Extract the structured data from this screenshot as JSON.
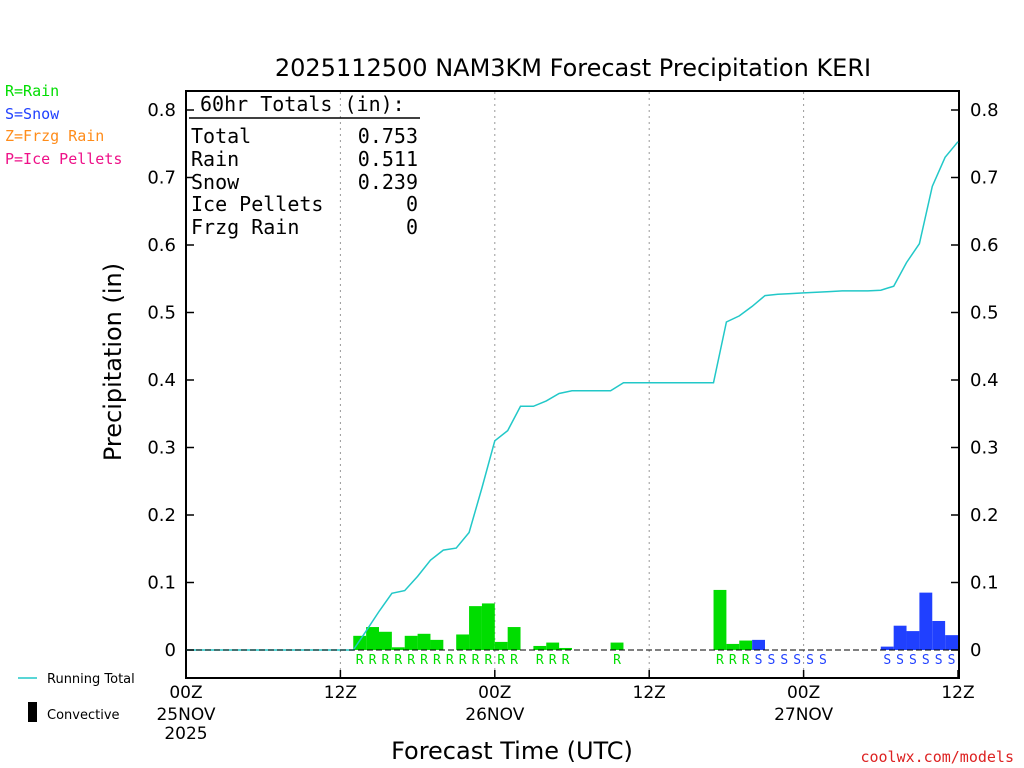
{
  "chart_data": {
    "type": "bar",
    "title": "2025112500 NAM3KM Forecast Precipitation KERI",
    "xlabel": "Forecast Time (UTC)",
    "ylabel": "Precipitation (in)",
    "ylim": [
      0,
      0.8
    ],
    "y_ticks": [
      "0",
      "0.1",
      "0.2",
      "0.3",
      "0.4",
      "0.5",
      "0.6",
      "0.7",
      "0.8"
    ],
    "x_range_hours": [
      0,
      60
    ],
    "x_ticks": [
      {
        "hour": 0,
        "label": "00Z",
        "sub": [
          "25NOV",
          "2025"
        ]
      },
      {
        "hour": 12,
        "label": "12Z",
        "sub": []
      },
      {
        "hour": 24,
        "label": "00Z",
        "sub": [
          "26NOV"
        ]
      },
      {
        "hour": 36,
        "label": "12Z",
        "sub": []
      },
      {
        "hour": 48,
        "label": "00Z",
        "sub": [
          "27NOV"
        ]
      },
      {
        "hour": 60,
        "label": "12Z",
        "sub": []
      }
    ],
    "grid_hours": [
      12,
      24,
      36,
      48
    ],
    "series": [
      {
        "name": "Rain",
        "color": "#00dd00",
        "hours": [
          14,
          15,
          16,
          17,
          18,
          19,
          20,
          22,
          23,
          24,
          25,
          26,
          28,
          29,
          30,
          34,
          42,
          43,
          44
        ],
        "values": [
          0.021,
          0.034,
          0.027,
          0.004,
          0.021,
          0.024,
          0.015,
          0.023,
          0.065,
          0.069,
          0.012,
          0.034,
          0.006,
          0.011,
          0.003,
          0.011,
          0.089,
          0.009,
          0.014
        ]
      },
      {
        "name": "Snow",
        "color": "#2040ff",
        "hours": [
          45,
          55,
          56,
          57,
          58,
          59,
          60
        ],
        "values": [
          0.015,
          0.005,
          0.036,
          0.028,
          0.085,
          0.043,
          0.022
        ]
      }
    ],
    "running_total": {
      "name": "Running Total",
      "color": "#22c8c8",
      "hours": [
        0,
        13,
        14,
        15,
        16,
        17,
        18,
        19,
        20,
        21,
        22,
        23,
        24,
        25,
        26,
        27,
        28,
        29,
        30,
        31,
        33,
        34,
        41,
        42,
        43,
        44,
        45,
        46,
        47,
        48,
        49,
        50,
        51,
        53,
        54,
        55,
        56,
        57,
        58,
        59,
        60
      ],
      "values": [
        0,
        0,
        0.028,
        0.057,
        0.084,
        0.088,
        0.109,
        0.133,
        0.148,
        0.151,
        0.174,
        0.24,
        0.31,
        0.325,
        0.361,
        0.361,
        0.369,
        0.38,
        0.384,
        0.384,
        0.384,
        0.396,
        0.396,
        0.486,
        0.495,
        0.509,
        0.525,
        0.527,
        0.528,
        0.529,
        0.53,
        0.531,
        0.532,
        0.532,
        0.533,
        0.539,
        0.574,
        0.602,
        0.687,
        0.73,
        0.753
      ]
    },
    "type_labels": {
      "rain": {
        "char": "R",
        "color": "#00dd00",
        "hours": [
          14,
          15,
          16,
          17,
          18,
          19,
          20,
          21,
          22,
          23,
          24,
          25,
          26,
          28,
          29,
          30,
          34,
          42,
          43,
          44
        ]
      },
      "snow": {
        "char": "S",
        "color": "#2040ff",
        "hours": [
          45,
          46,
          47,
          48,
          49,
          50,
          55,
          56,
          57,
          58,
          59,
          60
        ]
      }
    }
  },
  "totals_box": {
    "header": "60hr Totals (in):",
    "rows": [
      {
        "label": "Total",
        "value": "0.753"
      },
      {
        "label": "Rain",
        "value": "0.511"
      },
      {
        "label": "Snow",
        "value": "0.239"
      },
      {
        "label": "Ice Pellets",
        "value": "0"
      },
      {
        "label": "Frzg Rain",
        "value": "0"
      }
    ]
  },
  "key": [
    {
      "text": "R=Rain",
      "color": "#00dd00"
    },
    {
      "text": "S=Snow",
      "color": "#2040ff"
    },
    {
      "text": "Z=Frzg Rain",
      "color": "#ff8c1a"
    },
    {
      "text": "P=Ice Pellets",
      "color": "#ee1188"
    }
  ],
  "legend": {
    "running_total_label": "Running Total",
    "running_total_color": "#22c8c8",
    "convective_label": "Convective"
  },
  "watermark": "coolwx.com/models"
}
